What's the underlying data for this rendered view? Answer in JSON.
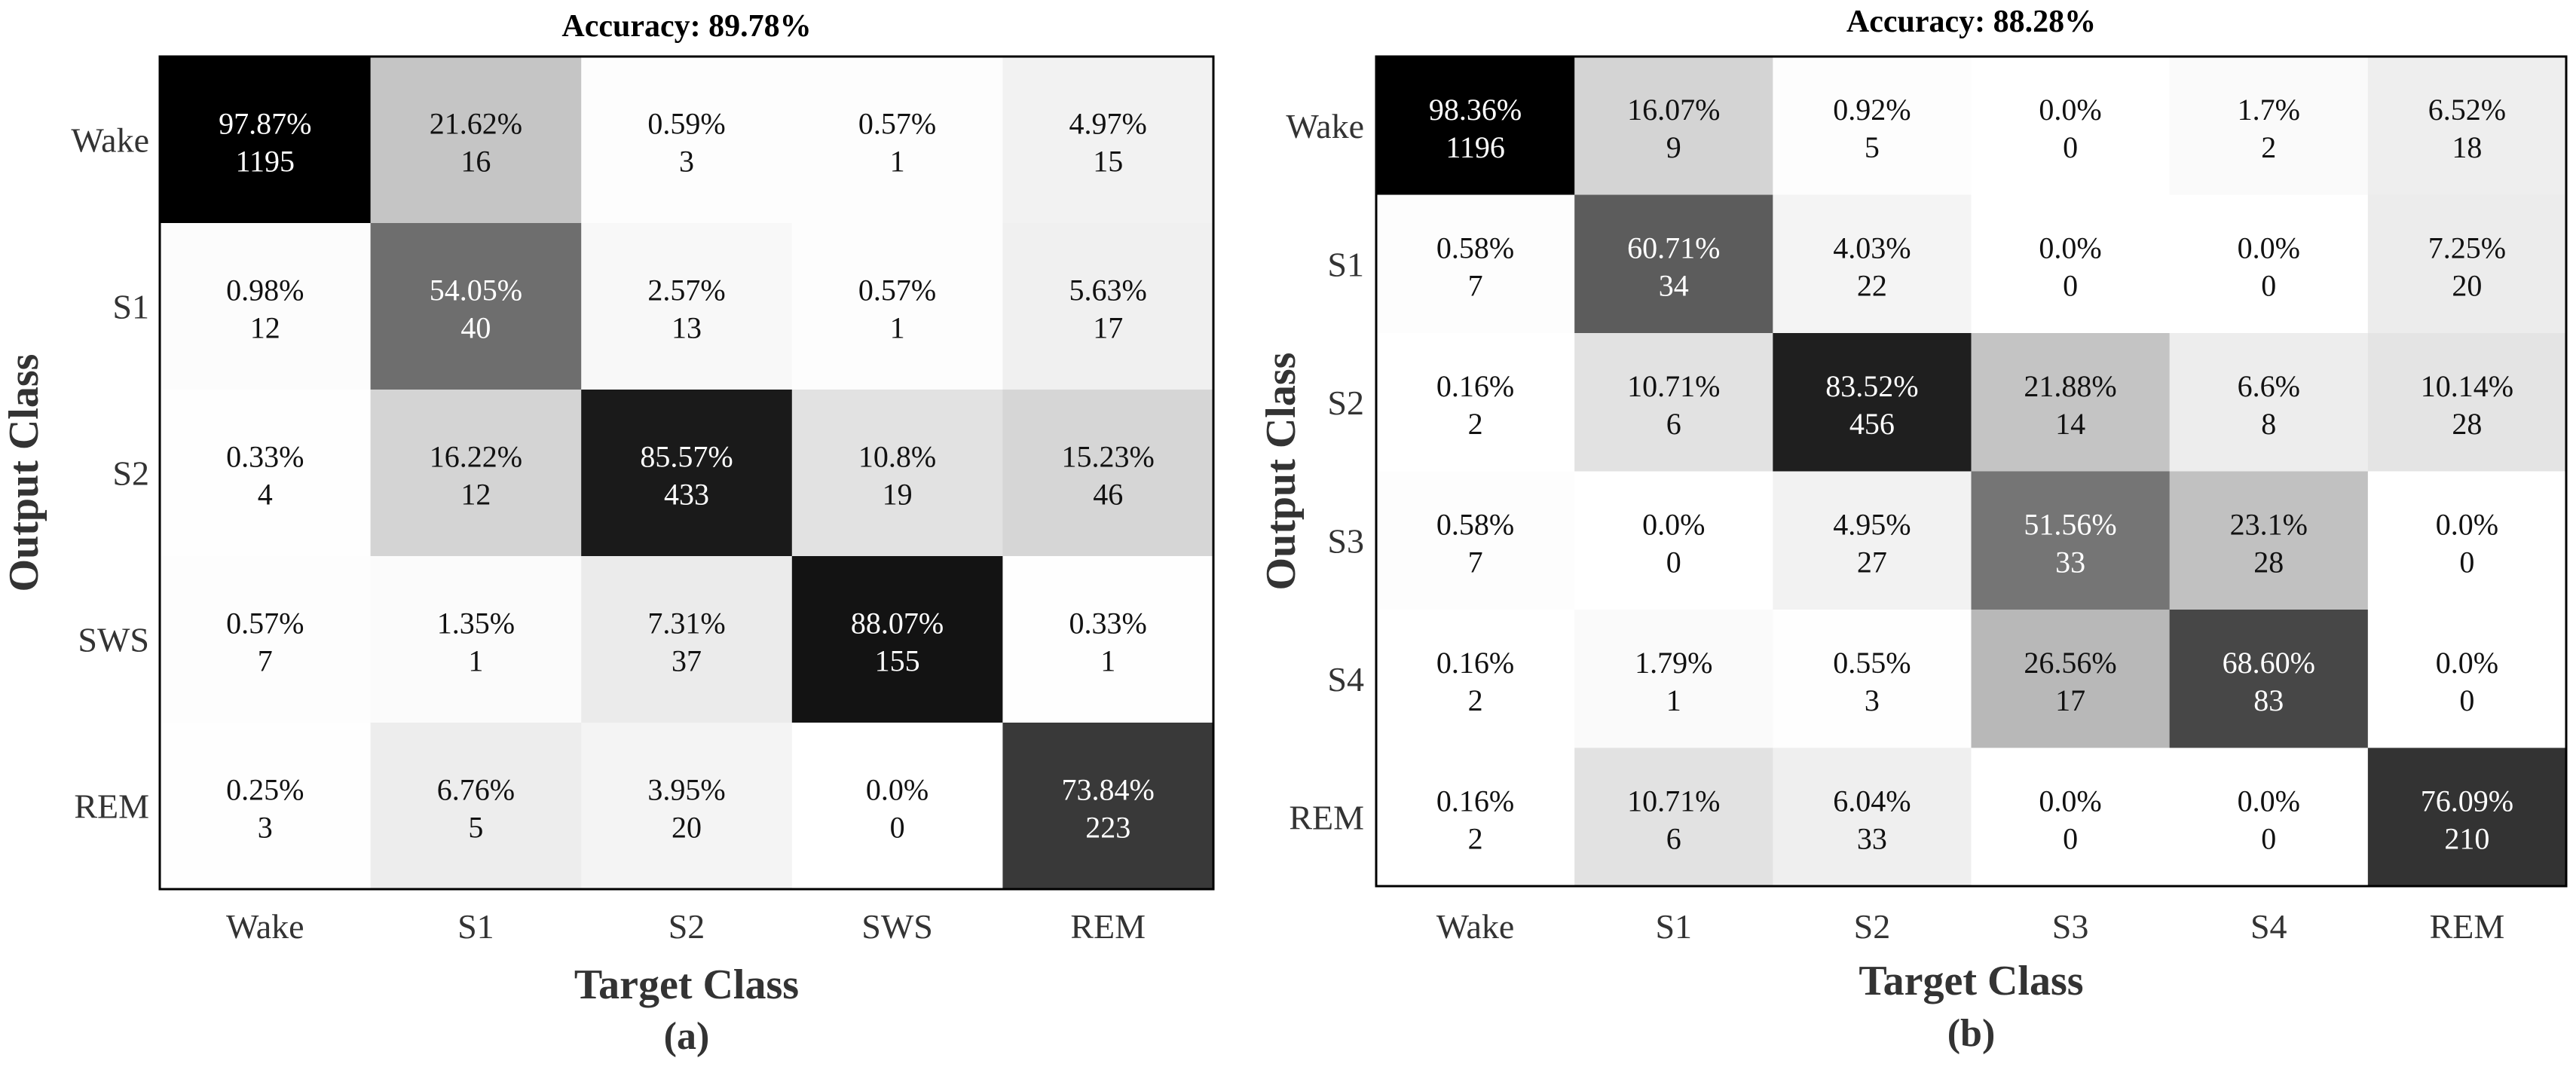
{
  "chart_data": [
    {
      "type": "heatmap",
      "title": "Accuracy: 89.78%",
      "xlabel": "Target Class",
      "ylabel": "Output Class",
      "panel_label": "(a)",
      "x_categories": [
        "Wake",
        "S1",
        "S2",
        "SWS",
        "REM"
      ],
      "y_categories": [
        "Wake",
        "S1",
        "S2",
        "SWS",
        "REM"
      ],
      "percent_labels": [
        [
          "97.87%",
          "21.62%",
          "0.59%",
          "0.57%",
          "4.97%"
        ],
        [
          "0.98%",
          "54.05%",
          "2.57%",
          "0.57%",
          "5.63%"
        ],
        [
          "0.33%",
          "16.22%",
          "85.57%",
          "10.8%",
          "15.23%"
        ],
        [
          "0.57%",
          "1.35%",
          "7.31%",
          "88.07%",
          "0.33%"
        ],
        [
          "0.25%",
          "6.76%",
          "3.95%",
          "0.0%",
          "73.84%"
        ]
      ],
      "counts": [
        [
          1195,
          16,
          3,
          1,
          15
        ],
        [
          12,
          40,
          13,
          1,
          17
        ],
        [
          4,
          12,
          433,
          19,
          46
        ],
        [
          7,
          1,
          37,
          155,
          1
        ],
        [
          3,
          5,
          20,
          0,
          223
        ]
      ]
    },
    {
      "type": "heatmap",
      "title": "Accuracy: 88.28%",
      "xlabel": "Target Class",
      "ylabel": "Output Class",
      "panel_label": "(b)",
      "x_categories": [
        "Wake",
        "S1",
        "S2",
        "S3",
        "S4",
        "REM"
      ],
      "y_categories": [
        "Wake",
        "S1",
        "S2",
        "S3",
        "S4",
        "REM"
      ],
      "percent_labels": [
        [
          "98.36%",
          "16.07%",
          "0.92%",
          "0.0%",
          "1.7%",
          "6.52%"
        ],
        [
          "0.58%",
          "60.71%",
          "4.03%",
          "0.0%",
          "0.0%",
          "7.25%"
        ],
        [
          "0.16%",
          "10.71%",
          "83.52%",
          "21.88%",
          "6.6%",
          "10.14%"
        ],
        [
          "0.58%",
          "0.0%",
          "4.95%",
          "51.56%",
          "23.1%",
          "0.0%"
        ],
        [
          "0.16%",
          "1.79%",
          "0.55%",
          "26.56%",
          "68.60%",
          "0.0%"
        ],
        [
          "0.16%",
          "10.71%",
          "6.04%",
          "0.0%",
          "0.0%",
          "76.09%"
        ]
      ],
      "counts": [
        [
          1196,
          9,
          5,
          0,
          2,
          18
        ],
        [
          7,
          34,
          22,
          0,
          0,
          20
        ],
        [
          2,
          6,
          456,
          14,
          8,
          28
        ],
        [
          7,
          0,
          27,
          33,
          28,
          0
        ],
        [
          2,
          1,
          3,
          17,
          83,
          0
        ],
        [
          2,
          6,
          33,
          0,
          0,
          210
        ]
      ]
    }
  ]
}
